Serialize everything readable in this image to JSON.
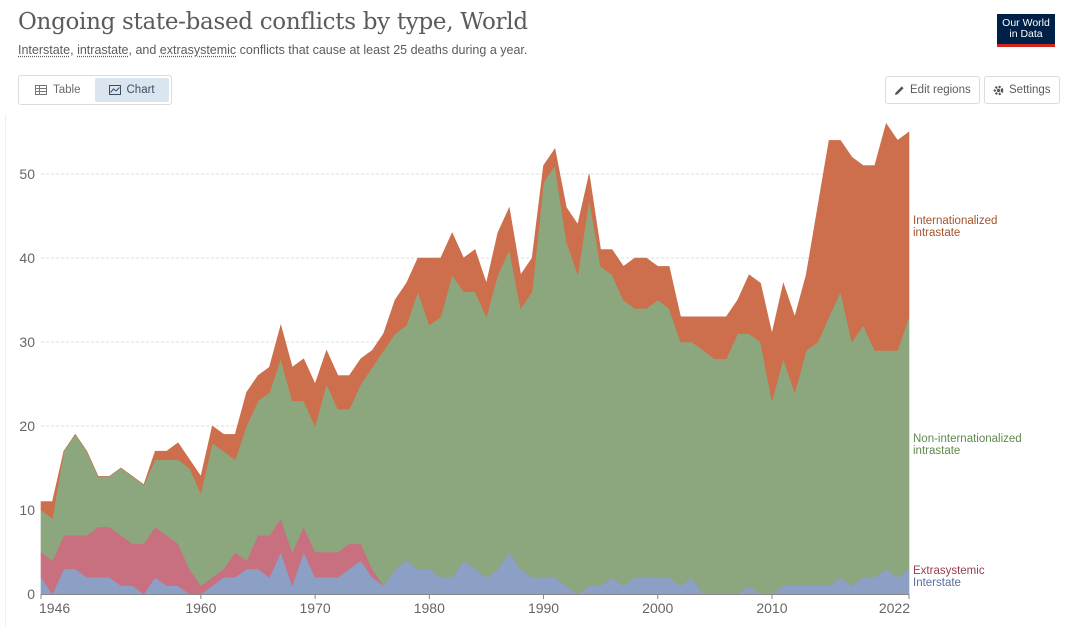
{
  "header": {
    "title": "Ongoing state-based conflicts by type, World",
    "subtitle_parts": [
      "Interstate",
      ", ",
      "intrastate",
      ", and ",
      "extrasystemic",
      " conflicts that cause at least 25 deaths during a year."
    ],
    "logo_line1": "Our World",
    "logo_line2": "in Data"
  },
  "toolbar": {
    "tab_table": "Table",
    "tab_chart": "Chart",
    "edit_regions": "Edit regions",
    "settings": "Settings"
  },
  "colors": {
    "interstate": "#8c9fc4",
    "extrasystemic": "#c8707f",
    "noninternational": "#8ca77e",
    "internationalized": "#cd6f4c",
    "interstate_label": "#5a6f9c",
    "extrasystemic_label": "#9a3d4e",
    "noninternational_label": "#5e8a4e",
    "internationalized_label": "#a4512d"
  },
  "chart_data": {
    "type": "area",
    "stacked": true,
    "x": [
      1946,
      1947,
      1948,
      1949,
      1950,
      1951,
      1952,
      1953,
      1954,
      1955,
      1956,
      1957,
      1958,
      1959,
      1960,
      1961,
      1962,
      1963,
      1964,
      1965,
      1966,
      1967,
      1968,
      1969,
      1970,
      1971,
      1972,
      1973,
      1974,
      1975,
      1976,
      1977,
      1978,
      1979,
      1980,
      1981,
      1982,
      1983,
      1984,
      1985,
      1986,
      1987,
      1988,
      1989,
      1990,
      1991,
      1992,
      1993,
      1994,
      1995,
      1996,
      1997,
      1998,
      1999,
      2000,
      2001,
      2002,
      2003,
      2004,
      2005,
      2006,
      2007,
      2008,
      2009,
      2010,
      2011,
      2012,
      2013,
      2014,
      2015,
      2016,
      2017,
      2018,
      2019,
      2020,
      2021,
      2022
    ],
    "series": [
      {
        "name": "Interstate",
        "values": [
          2,
          0,
          3,
          3,
          2,
          2,
          2,
          1,
          1,
          0,
          2,
          1,
          1,
          0,
          0,
          1,
          2,
          2,
          3,
          3,
          2,
          5,
          1,
          5,
          2,
          2,
          2,
          3,
          4,
          2,
          1,
          3,
          4,
          3,
          3,
          2,
          2,
          4,
          3,
          2,
          3,
          5,
          3,
          2,
          2,
          2,
          1,
          0,
          1,
          1,
          2,
          1,
          2,
          2,
          2,
          2,
          1,
          2,
          0,
          0,
          0,
          0,
          1,
          0,
          0,
          1,
          1,
          1,
          1,
          1,
          2,
          1,
          2,
          2,
          3,
          2,
          3
        ]
      },
      {
        "name": "Extrasystemic",
        "values": [
          3,
          4,
          4,
          4,
          5,
          6,
          6,
          6,
          5,
          6,
          6,
          6,
          5,
          3,
          1,
          1,
          1,
          3,
          1,
          4,
          5,
          4,
          4,
          3,
          3,
          3,
          3,
          3,
          2,
          1,
          0,
          0,
          0,
          0,
          0,
          0,
          0,
          0,
          0,
          0,
          0,
          0,
          0,
          0,
          0,
          0,
          0,
          0,
          0,
          0,
          0,
          0,
          0,
          0,
          0,
          0,
          0,
          0,
          0,
          0,
          0,
          0,
          0,
          0,
          0,
          0,
          0,
          0,
          0,
          0,
          0,
          0,
          0,
          0,
          0,
          0,
          0
        ]
      },
      {
        "name": "Non-internationalized intrastate",
        "values": [
          5,
          5,
          10,
          12,
          10,
          6,
          6,
          8,
          8,
          7,
          8,
          9,
          10,
          12,
          11,
          16,
          14,
          11,
          16,
          16,
          17,
          19,
          18,
          15,
          15,
          20,
          17,
          16,
          19,
          24,
          28,
          28,
          28,
          33,
          29,
          31,
          36,
          32,
          33,
          31,
          35,
          36,
          31,
          34,
          47,
          49,
          41,
          38,
          46,
          38,
          36,
          34,
          32,
          32,
          33,
          32,
          29,
          28,
          29,
          28,
          28,
          31,
          30,
          30,
          23,
          27,
          23,
          28,
          29,
          32,
          34,
          29,
          30,
          27,
          26,
          27,
          30
        ]
      },
      {
        "name": "Internationalized intrastate",
        "values": [
          1,
          2,
          0,
          0,
          0,
          0,
          0,
          0,
          0,
          0,
          1,
          1,
          2,
          1,
          2,
          2,
          2,
          3,
          4,
          3,
          3,
          4,
          4,
          5,
          5,
          4,
          4,
          4,
          3,
          2,
          2,
          4,
          5,
          4,
          8,
          7,
          5,
          4,
          5,
          4,
          5,
          5,
          4,
          4,
          2,
          2,
          4,
          6,
          3,
          2,
          3,
          4,
          6,
          6,
          4,
          5,
          3,
          3,
          4,
          5,
          5,
          4,
          7,
          7,
          8,
          9,
          9,
          9,
          16,
          21,
          18,
          22,
          19,
          22,
          27,
          25,
          22
        ]
      }
    ],
    "xticks": [
      1946,
      1960,
      1970,
      1980,
      1990,
      2000,
      2010,
      2022
    ],
    "yticks": [
      0,
      10,
      20,
      30,
      40,
      50
    ],
    "ylim": [
      0,
      56
    ]
  },
  "legend": {
    "internationalized_1": "Internationalized",
    "internationalized_2": "intrastate",
    "noninternational_1": "Non-internationalized",
    "noninternational_2": "intrastate",
    "extrasystemic": "Extrasystemic",
    "interstate": "Interstate"
  }
}
